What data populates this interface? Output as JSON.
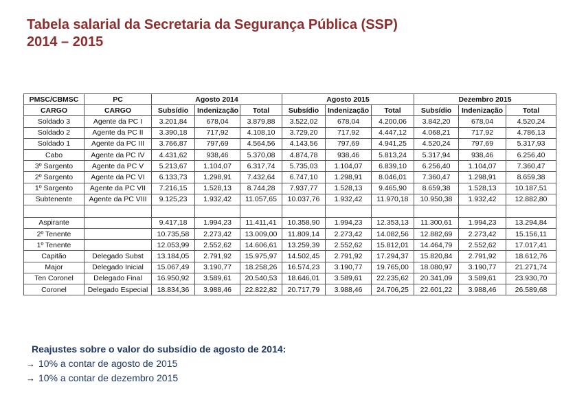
{
  "title_line1": "Tabela salarial da Secretaria da Segurança Pública (SSP)",
  "title_line2": "2014 – 2015",
  "table": {
    "header1": [
      "PMSC/CBMSC",
      "PC",
      "Agosto 2014",
      "Agosto 2015",
      "Dezembro 2015"
    ],
    "header2": [
      "CARGO",
      "CARGO",
      "Subsídio",
      "Indenização",
      "Total",
      "Subsídio",
      "Indenização",
      "Total",
      "Subsídio",
      "Indenização",
      "Total"
    ],
    "group1": [
      [
        "Soldado 3",
        "Agente da PC I",
        "3.201,84",
        "678,04",
        "3.879,88",
        "3.522,02",
        "678,04",
        "4.200,06",
        "3.842,20",
        "678,04",
        "4.520,24"
      ],
      [
        "Soldado 2",
        "Agente da PC II",
        "3.390,18",
        "717,92",
        "4.108,10",
        "3.729,20",
        "717,92",
        "4.447,12",
        "4.068,21",
        "717,92",
        "4.786,13"
      ],
      [
        "Soldado 1",
        "Agente da PC III",
        "3.766,87",
        "797,69",
        "4.564,56",
        "4.143,56",
        "797,69",
        "4.941,25",
        "4.520,24",
        "797,69",
        "5.317,93"
      ],
      [
        "Cabo",
        "Agente da PC IV",
        "4.431,62",
        "938,46",
        "5.370,08",
        "4.874,78",
        "938,46",
        "5.813,24",
        "5.317,94",
        "938,46",
        "6.256,40"
      ],
      [
        "3º Sargento",
        "Agente da PC V",
        "5.213,67",
        "1.104,07",
        "6.317,74",
        "5.735,03",
        "1.104,07",
        "6.839,10",
        "6.256,40",
        "1.104,07",
        "7.360,47"
      ],
      [
        "2º Sargento",
        "Agente da PC VI",
        "6.133,73",
        "1.298,91",
        "7.432,64",
        "6.747,10",
        "1.298,91",
        "8.046,01",
        "7.360,47",
        "1.298,91",
        "8.659,38"
      ],
      [
        "1º Sargento",
        "Agente da PC VII",
        "7.216,15",
        "1.528,13",
        "8.744,28",
        "7.937,77",
        "1.528,13",
        "9.465,90",
        "8.659,38",
        "1.528,13",
        "10.187,51"
      ],
      [
        "Subtenente",
        "Agente da PC VIII",
        "9.125,23",
        "1.932,42",
        "11.057,65",
        "10.037,76",
        "1.932,42",
        "11.970,18",
        "10.950,38",
        "1.932,42",
        "12.882,80"
      ]
    ],
    "group2": [
      [
        "Aspirante",
        "",
        "9.417,18",
        "1.994,23",
        "11.411,41",
        "10.358,90",
        "1.994,23",
        "12.353,13",
        "11.300,61",
        "1.994,23",
        "13.294,84"
      ],
      [
        "2º Tenente",
        "",
        "10.735,58",
        "2.273,42",
        "13.009,00",
        "11.809,14",
        "2.273,42",
        "14.082,56",
        "12.882,69",
        "2.273,42",
        "15.156,11"
      ],
      [
        "1º Tenente",
        "",
        "12.053,99",
        "2.552,62",
        "14.606,61",
        "13.259,39",
        "2.552,62",
        "15.812,01",
        "14.464,79",
        "2.552,62",
        "17.017,41"
      ],
      [
        "Capitão",
        "Delegado Subst",
        "13.184,05",
        "2.791,92",
        "15.975,97",
        "14.502,45",
        "2.791,92",
        "17.294,37",
        "15.820,84",
        "2.791,92",
        "18.612,76"
      ],
      [
        "Major",
        "Delegado Inicial",
        "15.067,49",
        "3.190,77",
        "18.258,26",
        "16.574,23",
        "3.190,77",
        "19.765,00",
        "18.080,97",
        "3.190,77",
        "21.271,74"
      ],
      [
        "Ten Coronel",
        "Delegado Final",
        "16.950,92",
        "3.589,61",
        "20.540,53",
        "18.646,01",
        "3.589,61",
        "22.235,62",
        "20.341,09",
        "3.589,61",
        "23.930,70"
      ],
      [
        "Coronel",
        "Delegado Especial",
        "18.834,36",
        "3.988,46",
        "22.822,82",
        "20.717,79",
        "3.988,46",
        "24.706,25",
        "22.601,22",
        "3.988,46",
        "26.589,68"
      ]
    ]
  },
  "notes": {
    "heading": "Reajustes sobre o valor do subsídio de agosto de 2014:",
    "items": [
      "10% a contar de agosto de 2015",
      "10% a contar de dezembro 2015"
    ]
  },
  "colors": {
    "title": "#8b2e2e",
    "total_value": "#e00000",
    "notes_text": "#1f3864"
  }
}
